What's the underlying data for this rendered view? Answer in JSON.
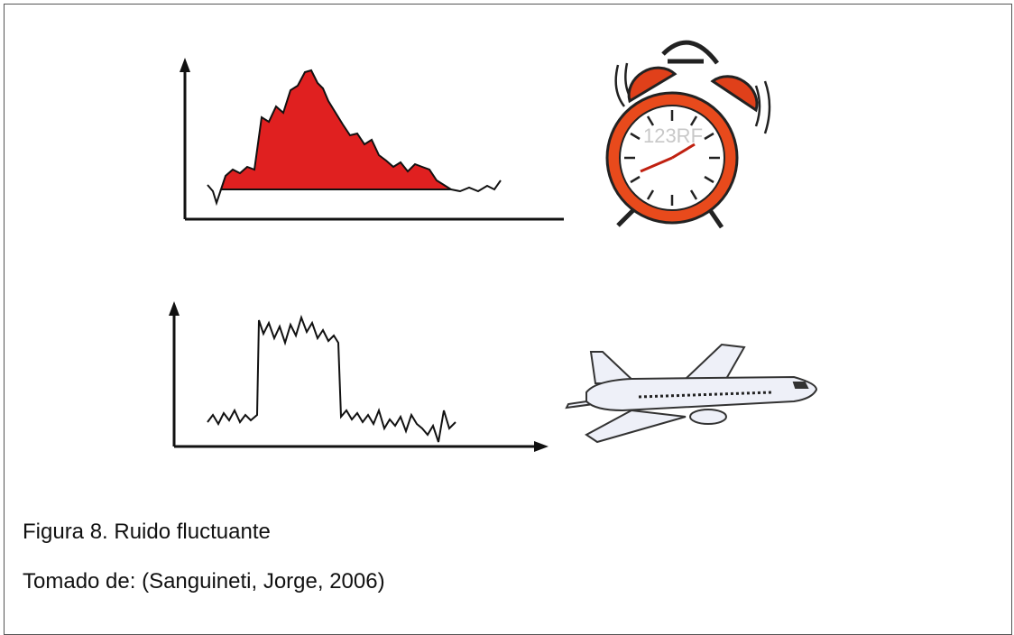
{
  "caption": {
    "title": "Figura 8. Ruido fluctuante",
    "source": "Tomado de: (Sanguineti, Jorge, 2006)"
  },
  "clock": {
    "watermark": "123RF"
  }
}
